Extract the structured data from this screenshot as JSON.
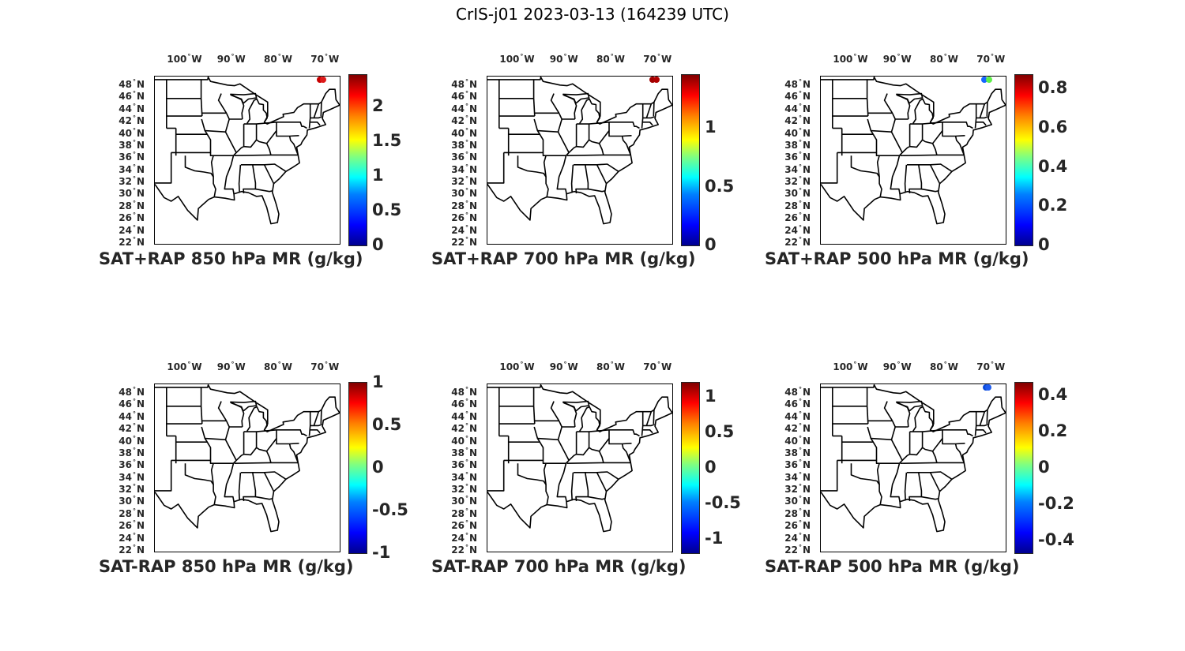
{
  "figure_title": "CrIS-j01 2023-03-13 (164239 UTC)",
  "lon_labels": [
    "100",
    "90",
    "80",
    "70"
  ],
  "lon_suffix": "W",
  "lat_labels": [
    "48",
    "46",
    "44",
    "42",
    "40",
    "38",
    "36",
    "34",
    "32",
    "30",
    "28",
    "26",
    "24",
    "22"
  ],
  "lat_suffix": "N",
  "degree_symbol": "°",
  "colormap": "jet",
  "panels": [
    {
      "title": "SAT+RAP 850 hPa MR (g/kg)",
      "colorbar_ticks": [
        "2",
        "1.5",
        "1",
        "0.5",
        "0"
      ],
      "colorbar_values": [
        2,
        1.5,
        1,
        0.5,
        0
      ],
      "clim": [
        0,
        2.45
      ],
      "points": [
        {
          "lon": -71.3,
          "lat": 49.0,
          "color": "#c80000"
        },
        {
          "lon": -70.5,
          "lat": 49.0,
          "color": "#dd1a1a"
        }
      ]
    },
    {
      "title": "SAT+RAP 700 hPa MR (g/kg)",
      "colorbar_ticks": [
        "1",
        "0.5",
        "0"
      ],
      "colorbar_values": [
        1,
        0.5,
        0
      ],
      "clim": [
        0,
        1.45
      ],
      "points": [
        {
          "lon": -71.2,
          "lat": 49.0,
          "color": "#a00000"
        },
        {
          "lon": -70.4,
          "lat": 49.0,
          "color": "#b00000"
        }
      ]
    },
    {
      "title": "SAT+RAP 500 hPa MR (g/kg)",
      "colorbar_ticks": [
        "0.8",
        "0.6",
        "0.4",
        "0.2",
        "0"
      ],
      "colorbar_values": [
        0.8,
        0.6,
        0.4,
        0.2,
        0
      ],
      "clim": [
        0,
        0.87
      ],
      "points": [
        {
          "lon": -71.6,
          "lat": 49.0,
          "color": "#1565ff"
        },
        {
          "lon": -70.6,
          "lat": 49.0,
          "color": "#5ef04a"
        }
      ]
    },
    {
      "title": "SAT-RAP 850 hPa MR (g/kg)",
      "colorbar_ticks": [
        "1",
        "0.5",
        "0",
        "-0.5",
        "-1"
      ],
      "colorbar_values": [
        1,
        0.5,
        0,
        -0.5,
        -1
      ],
      "clim": [
        -1.0,
        1.0
      ],
      "points": []
    },
    {
      "title": "SAT-RAP 700 hPa MR (g/kg)",
      "colorbar_ticks": [
        "1",
        "0.5",
        "0",
        "-0.5",
        "-1"
      ],
      "colorbar_values": [
        1,
        0.5,
        0,
        -0.5,
        -1
      ],
      "clim": [
        -1.2,
        1.2
      ],
      "points": []
    },
    {
      "title": "SAT-RAP 500 hPa MR (g/kg)",
      "colorbar_ticks": [
        "0.4",
        "0.2",
        "0",
        "-0.2",
        "-0.4"
      ],
      "colorbar_values": [
        0.4,
        0.2,
        0,
        -0.2,
        -0.4
      ],
      "clim": [
        -0.47,
        0.47
      ],
      "points": [
        {
          "lon": -71.3,
          "lat": 49.0,
          "color": "#0a4ad8"
        },
        {
          "lon": -70.7,
          "lat": 49.0,
          "color": "#1e5cf0"
        }
      ]
    }
  ]
}
